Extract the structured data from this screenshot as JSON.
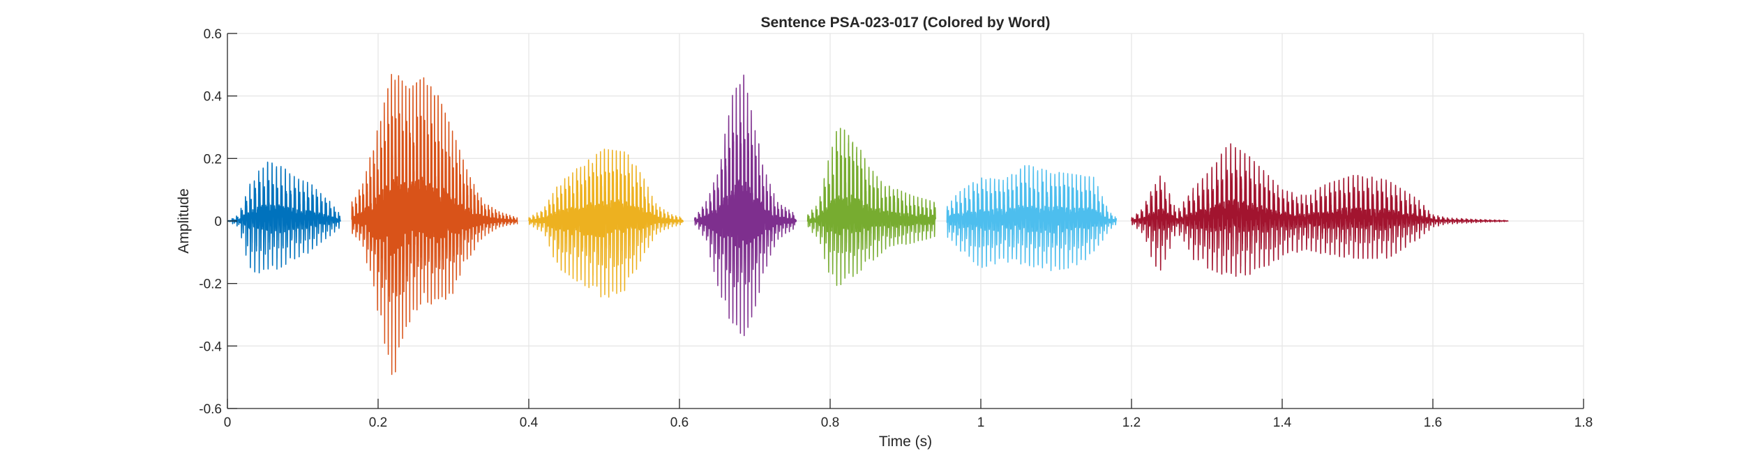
{
  "chart_data": {
    "type": "line",
    "title": "Sentence PSA-023-017 (Colored by Word)",
    "xlabel": "Time (s)",
    "ylabel": "Amplitude",
    "xlim": [
      0,
      1.8
    ],
    "ylim": [
      -0.6,
      0.6
    ],
    "xticks": [
      0,
      0.2,
      0.4,
      0.6,
      0.8,
      1,
      1.2,
      1.4,
      1.6,
      1.8
    ],
    "xtick_labels": [
      "0",
      "0.2",
      "0.4",
      "0.6",
      "0.8",
      "1",
      "1.2",
      "1.4",
      "1.6",
      "1.8"
    ],
    "yticks": [
      -0.6,
      -0.4,
      -0.2,
      0,
      0.2,
      0.4,
      0.6
    ],
    "ytick_labels": [
      "-0.6",
      "-0.4",
      "-0.2",
      "0",
      "0.2",
      "0.4",
      "0.6"
    ],
    "grid": true,
    "series": [
      {
        "color": "#0072BD",
        "t_start": 0.0,
        "t_end": 0.15,
        "pitch_hz": 170,
        "envelope_t": [
          0.0,
          0.015,
          0.03,
          0.05,
          0.07,
          0.09,
          0.11,
          0.13,
          0.15
        ],
        "envelope_upper": [
          0.0,
          0.02,
          0.12,
          0.19,
          0.18,
          0.14,
          0.12,
          0.08,
          0.02
        ],
        "envelope_lower": [
          0.0,
          -0.02,
          -0.16,
          -0.17,
          -0.15,
          -0.12,
          -0.1,
          -0.06,
          -0.02
        ]
      },
      {
        "color": "#D95319",
        "t_start": 0.165,
        "t_end": 0.385,
        "pitch_hz": 210,
        "envelope_t": [
          0.165,
          0.18,
          0.2,
          0.22,
          0.24,
          0.26,
          0.28,
          0.3,
          0.32,
          0.34,
          0.36,
          0.385
        ],
        "envelope_upper": [
          0.06,
          0.12,
          0.3,
          0.49,
          0.42,
          0.46,
          0.4,
          0.28,
          0.15,
          0.06,
          0.03,
          0.01
        ],
        "envelope_lower": [
          -0.04,
          -0.08,
          -0.3,
          -0.51,
          -0.33,
          -0.26,
          -0.28,
          -0.23,
          -0.12,
          -0.05,
          -0.02,
          -0.01
        ]
      },
      {
        "color": "#EDB120",
        "t_start": 0.4,
        "t_end": 0.605,
        "pitch_hz": 190,
        "envelope_t": [
          0.4,
          0.42,
          0.44,
          0.47,
          0.5,
          0.53,
          0.55,
          0.57,
          0.59,
          0.605
        ],
        "envelope_upper": [
          0.01,
          0.04,
          0.12,
          0.18,
          0.23,
          0.22,
          0.15,
          0.05,
          0.02,
          0.01
        ],
        "envelope_lower": [
          -0.01,
          -0.04,
          -0.16,
          -0.2,
          -0.25,
          -0.22,
          -0.12,
          -0.04,
          -0.02,
          -0.01
        ]
      },
      {
        "color": "#7E2F8E",
        "t_start": 0.62,
        "t_end": 0.755,
        "pitch_hz": 200,
        "envelope_t": [
          0.62,
          0.635,
          0.65,
          0.67,
          0.685,
          0.7,
          0.715,
          0.73,
          0.755
        ],
        "envelope_upper": [
          0.01,
          0.06,
          0.15,
          0.4,
          0.47,
          0.3,
          0.15,
          0.06,
          0.02
        ],
        "envelope_lower": [
          -0.01,
          -0.06,
          -0.2,
          -0.35,
          -0.38,
          -0.28,
          -0.15,
          -0.06,
          -0.02
        ]
      },
      {
        "color": "#77AC30",
        "t_start": 0.77,
        "t_end": 0.94,
        "pitch_hz": 185,
        "envelope_t": [
          0.77,
          0.785,
          0.8,
          0.81,
          0.83,
          0.85,
          0.87,
          0.89,
          0.91,
          0.94
        ],
        "envelope_upper": [
          0.02,
          0.06,
          0.22,
          0.3,
          0.28,
          0.18,
          0.12,
          0.1,
          0.08,
          0.06
        ],
        "envelope_lower": [
          -0.02,
          -0.06,
          -0.18,
          -0.21,
          -0.18,
          -0.14,
          -0.1,
          -0.08,
          -0.07,
          -0.05
        ]
      },
      {
        "color": "#4DBEEE",
        "t_start": 0.955,
        "t_end": 1.18,
        "pitch_hz": 175,
        "envelope_t": [
          0.955,
          0.97,
          1.0,
          1.03,
          1.06,
          1.09,
          1.12,
          1.15,
          1.17,
          1.18
        ],
        "envelope_upper": [
          0.05,
          0.09,
          0.14,
          0.13,
          0.18,
          0.16,
          0.15,
          0.14,
          0.03,
          0.01
        ],
        "envelope_lower": [
          -0.05,
          -0.09,
          -0.15,
          -0.13,
          -0.14,
          -0.16,
          -0.15,
          -0.11,
          -0.03,
          -0.01
        ]
      },
      {
        "color": "#A2142F",
        "t_start": 1.2,
        "t_end": 1.7,
        "pitch_hz": 160,
        "envelope_t": [
          1.2,
          1.215,
          1.23,
          1.24,
          1.26,
          1.28,
          1.3,
          1.33,
          1.36,
          1.4,
          1.43,
          1.46,
          1.5,
          1.54,
          1.58,
          1.6,
          1.62,
          1.66,
          1.7
        ],
        "envelope_upper": [
          0.01,
          0.04,
          0.12,
          0.15,
          0.03,
          0.1,
          0.15,
          0.25,
          0.2,
          0.1,
          0.08,
          0.12,
          0.15,
          0.13,
          0.07,
          0.02,
          0.01,
          0.005,
          0.002
        ],
        "envelope_lower": [
          -0.01,
          -0.04,
          -0.14,
          -0.16,
          -0.03,
          -0.12,
          -0.15,
          -0.18,
          -0.17,
          -0.12,
          -0.09,
          -0.11,
          -0.12,
          -0.12,
          -0.06,
          -0.02,
          -0.01,
          -0.005,
          -0.002
        ]
      }
    ]
  }
}
